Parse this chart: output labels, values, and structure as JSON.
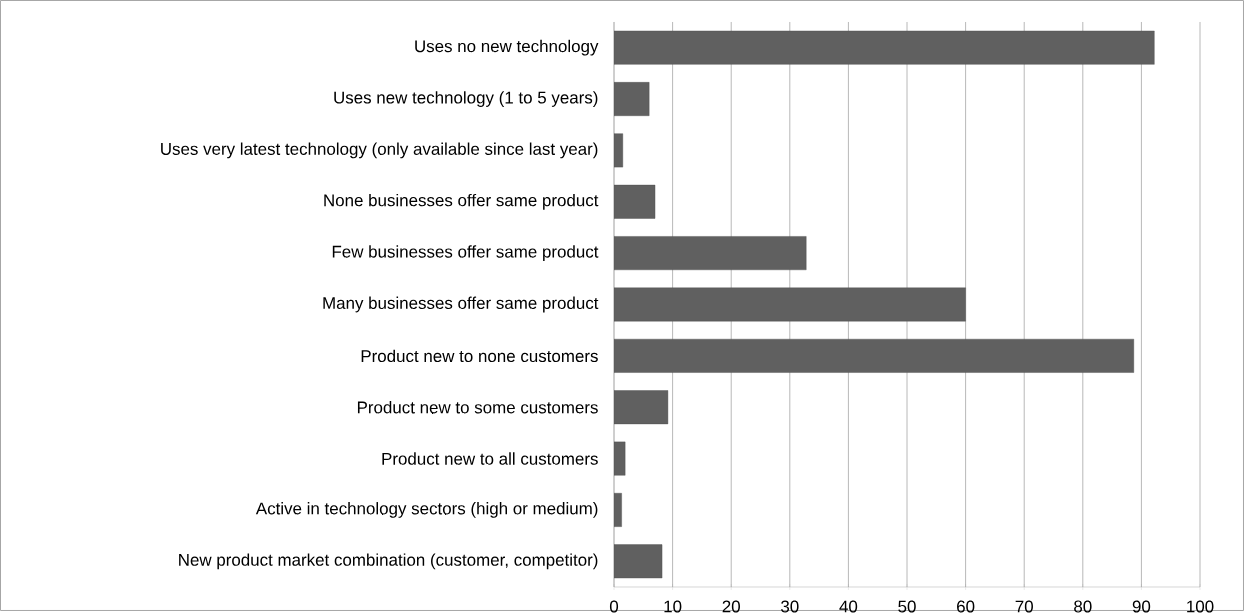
{
  "chart_data": {
    "type": "bar",
    "orientation": "horizontal",
    "categories": [
      "Uses no new technology",
      "Uses new  technology (1 to 5 years)",
      "Uses very latest technology (only available since last year)",
      "None businesses offer same product",
      "Few businesses offer same product",
      "Many businesses offer same product",
      "Product new to none customers",
      "Product new to some customers",
      "Product new to all customers",
      "Active in technology sectors (high or medium)",
      "New product market combination (customer, competitor)"
    ],
    "values": [
      92.2,
      6.0,
      1.5,
      7.0,
      32.8,
      60.0,
      88.7,
      9.2,
      1.9,
      1.3,
      8.2
    ],
    "color": "#606060",
    "xlim": [
      0,
      100
    ],
    "xticks": [
      0,
      10,
      20,
      30,
      40,
      50,
      60,
      70,
      80,
      90,
      100
    ],
    "grid": "x"
  }
}
